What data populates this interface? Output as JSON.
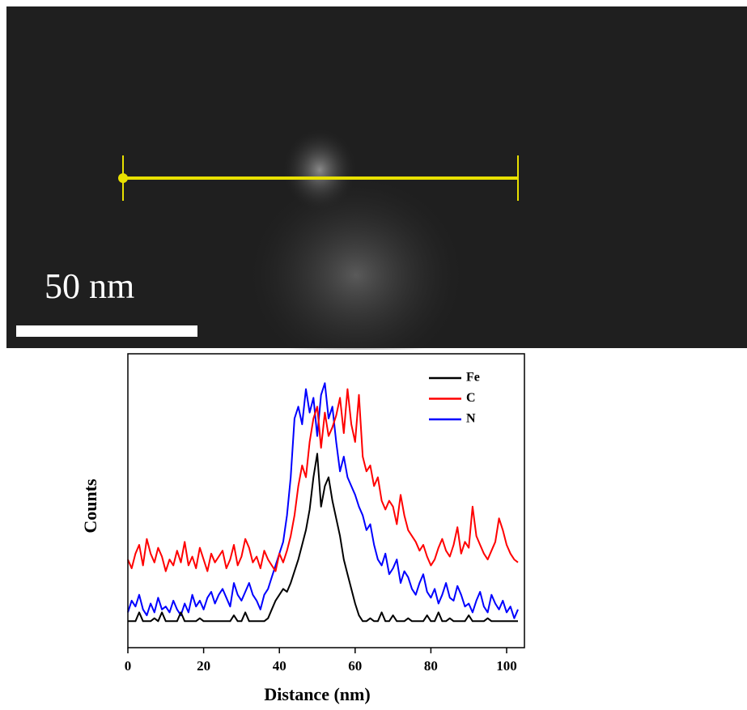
{
  "image": {
    "scale_label": "50 nm"
  },
  "chart_data": {
    "type": "line",
    "x_label": "Distance (nm)",
    "y_label": "Counts",
    "x": [
      0,
      1,
      2,
      3,
      4,
      5,
      6,
      7,
      8,
      9,
      10,
      11,
      12,
      13,
      14,
      15,
      16,
      17,
      18,
      19,
      20,
      21,
      22,
      23,
      24,
      25,
      26,
      27,
      28,
      29,
      30,
      31,
      32,
      33,
      34,
      35,
      36,
      37,
      38,
      39,
      40,
      41,
      42,
      43,
      44,
      45,
      46,
      47,
      48,
      49,
      50,
      51,
      52,
      53,
      54,
      55,
      56,
      57,
      58,
      59,
      60,
      61,
      62,
      63,
      64,
      65,
      66,
      67,
      68,
      69,
      70,
      71,
      72,
      73,
      74,
      75,
      76,
      77,
      78,
      79,
      80,
      81,
      82,
      83,
      84,
      85,
      86,
      87,
      88,
      89,
      90,
      91,
      92,
      93,
      94,
      95,
      96,
      97,
      98,
      99,
      100,
      101,
      102,
      103
    ],
    "series": [
      {
        "name": "Fe",
        "color": "#000000",
        "values": [
          9,
          9,
          9,
          12,
          9,
          9,
          9,
          10,
          9,
          12,
          9,
          9,
          9,
          9,
          12,
          9,
          9,
          9,
          9,
          10,
          9,
          9,
          9,
          9,
          9,
          9,
          9,
          9,
          11,
          9,
          9,
          12,
          9,
          9,
          9,
          9,
          9,
          10,
          13,
          16,
          18,
          20,
          19,
          22,
          26,
          30,
          35,
          40,
          47,
          58,
          66,
          48,
          55,
          58,
          50,
          44,
          38,
          30,
          25,
          20,
          15,
          11,
          9,
          9,
          10,
          9,
          9,
          12,
          9,
          9,
          11,
          9,
          9,
          9,
          10,
          9,
          9,
          9,
          9,
          11,
          9,
          9,
          12,
          9,
          9,
          10,
          9,
          9,
          9,
          9,
          11,
          9,
          9,
          9,
          9,
          10,
          9,
          9,
          9,
          9,
          9,
          9,
          9,
          9
        ]
      },
      {
        "name": "C",
        "color": "#ff0000",
        "values": [
          30,
          27,
          32,
          35,
          28,
          37,
          32,
          29,
          34,
          31,
          26,
          30,
          28,
          33,
          29,
          36,
          28,
          31,
          27,
          34,
          30,
          26,
          32,
          29,
          31,
          33,
          27,
          30,
          35,
          28,
          31,
          37,
          34,
          29,
          31,
          27,
          33,
          30,
          28,
          26,
          32,
          29,
          33,
          38,
          45,
          55,
          62,
          58,
          70,
          78,
          82,
          68,
          80,
          72,
          75,
          79,
          85,
          73,
          88,
          76,
          70,
          86,
          65,
          60,
          62,
          55,
          58,
          50,
          47,
          50,
          48,
          42,
          52,
          45,
          40,
          38,
          36,
          33,
          35,
          31,
          28,
          30,
          34,
          37,
          33,
          31,
          35,
          41,
          32,
          36,
          34,
          48,
          38,
          35,
          32,
          30,
          33,
          36,
          44,
          40,
          35,
          32,
          30,
          29
        ]
      },
      {
        "name": "N",
        "color": "#0000ff",
        "values": [
          12,
          16,
          14,
          18,
          13,
          11,
          15,
          12,
          17,
          13,
          14,
          12,
          16,
          13,
          11,
          15,
          12,
          18,
          14,
          16,
          13,
          17,
          19,
          15,
          18,
          20,
          17,
          14,
          22,
          18,
          16,
          19,
          22,
          18,
          16,
          13,
          18,
          20,
          24,
          28,
          32,
          36,
          45,
          58,
          78,
          82,
          76,
          88,
          80,
          85,
          72,
          86,
          90,
          78,
          82,
          70,
          60,
          65,
          58,
          55,
          52,
          48,
          45,
          40,
          42,
          35,
          30,
          28,
          32,
          25,
          27,
          30,
          22,
          26,
          24,
          20,
          18,
          22,
          25,
          19,
          17,
          20,
          15,
          18,
          22,
          17,
          16,
          21,
          18,
          14,
          15,
          12,
          16,
          19,
          14,
          12,
          18,
          15,
          13,
          16,
          12,
          14,
          10,
          13
        ]
      }
    ],
    "xlim": [
      0,
      104.7
    ],
    "ylim": [
      0,
      100
    ],
    "xticks": [
      0,
      20,
      40,
      60,
      80,
      100
    ],
    "legend": "upper right"
  }
}
